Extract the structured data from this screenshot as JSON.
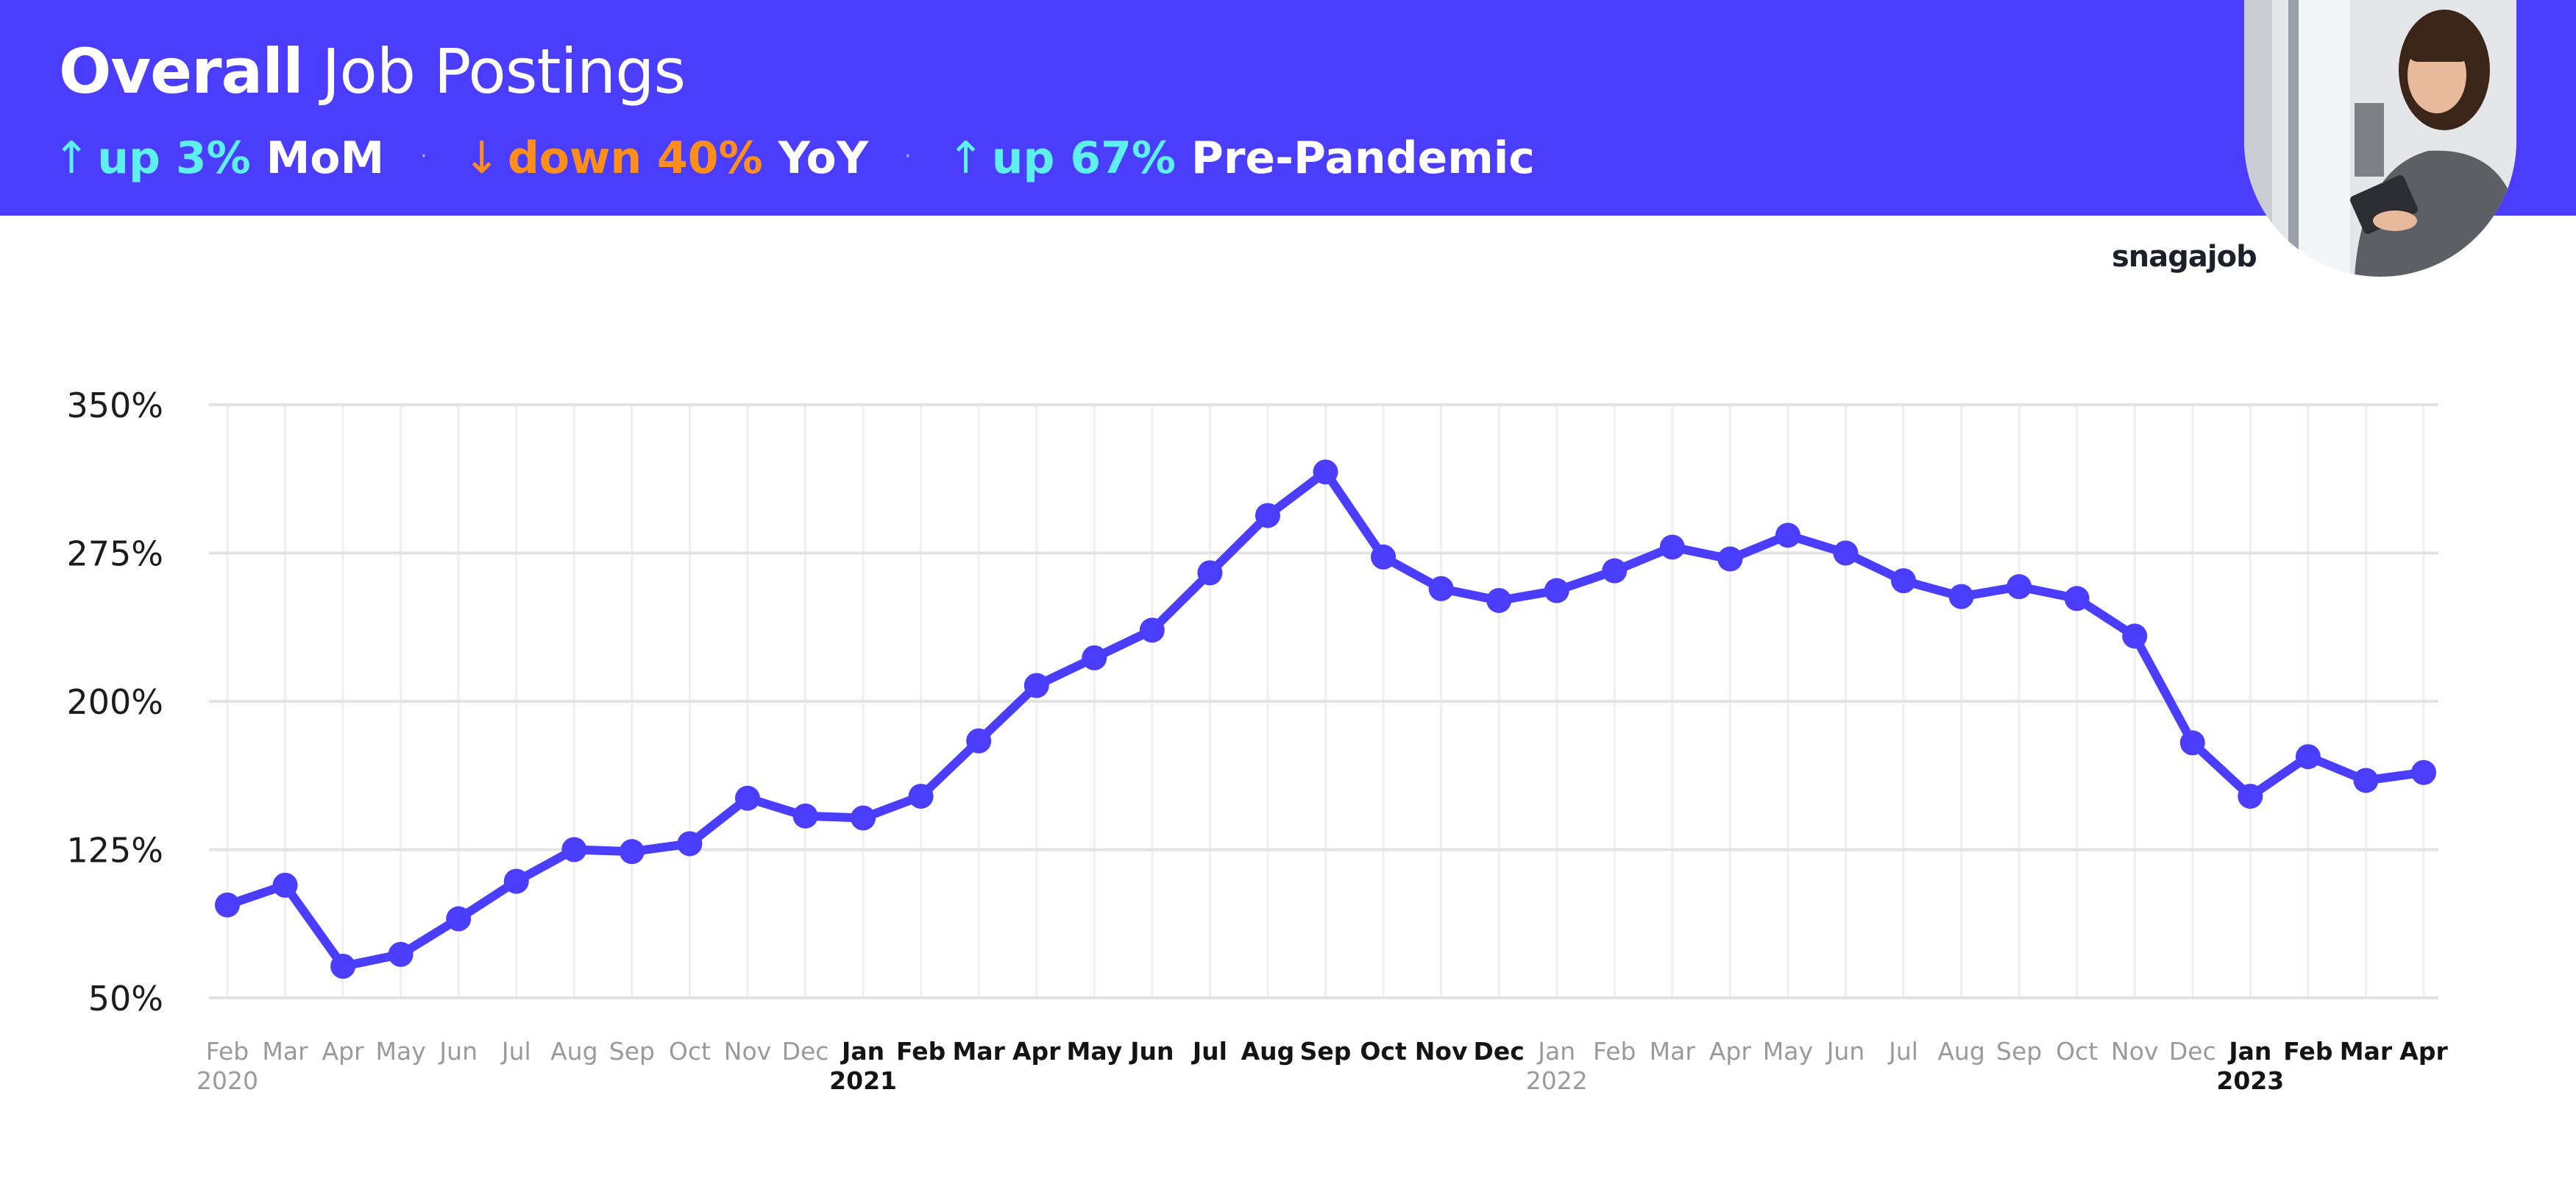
{
  "header": {
    "title_bold": "Overall",
    "title_light": "Job Postings",
    "stats": [
      {
        "arrow": "↑",
        "value": "up 3%",
        "label": "MoM",
        "color": "#5ef0ee"
      },
      {
        "arrow": "↓",
        "value": "down 40%",
        "label": "YoY",
        "color": "#ff8f1a"
      },
      {
        "arrow": "↑",
        "value": "up 67%",
        "label": "Pre-Pandemic",
        "color": "#5ef0ee"
      }
    ],
    "separator": "·"
  },
  "brand": "snagajob",
  "colors": {
    "header_bg": "#4a3dfb",
    "line": "#4a3dfb",
    "grid": "#e6e6e6"
  },
  "chart_data": {
    "type": "line",
    "title": "Overall Job Postings",
    "xlabel": "",
    "ylabel": "",
    "ylim": [
      50,
      350
    ],
    "yticks": [
      50,
      125,
      200,
      275,
      350
    ],
    "ytick_labels": [
      "50%",
      "125%",
      "200%",
      "275%",
      "350%"
    ],
    "categories": [
      "Feb",
      "Mar",
      "Apr",
      "May",
      "Jun",
      "Jul",
      "Aug",
      "Sep",
      "Oct",
      "Nov",
      "Dec",
      "Jan",
      "Feb",
      "Mar",
      "Apr",
      "May",
      "Jun",
      "Jul",
      "Aug",
      "Sep",
      "Oct",
      "Nov",
      "Dec",
      "Jan",
      "Feb",
      "Mar",
      "Apr",
      "May",
      "Jun",
      "Jul",
      "Aug",
      "Sep",
      "Oct",
      "Nov",
      "Dec",
      "Jan",
      "Feb",
      "Mar",
      "Apr"
    ],
    "category_bold": [
      false,
      false,
      false,
      false,
      false,
      false,
      false,
      false,
      false,
      false,
      false,
      true,
      true,
      true,
      true,
      true,
      true,
      true,
      true,
      true,
      true,
      true,
      true,
      false,
      false,
      false,
      false,
      false,
      false,
      false,
      false,
      false,
      false,
      false,
      false,
      true,
      true,
      true,
      true
    ],
    "years": [
      {
        "index": 0,
        "label": "2020",
        "bold": false
      },
      {
        "index": 11,
        "label": "2021",
        "bold": true
      },
      {
        "index": 23,
        "label": "2022",
        "bold": false
      },
      {
        "index": 35,
        "label": "2023",
        "bold": true
      }
    ],
    "series": [
      {
        "name": "Overall Job Postings",
        "values": [
          97,
          107,
          66,
          72,
          90,
          109,
          125,
          124,
          128,
          151,
          142,
          141,
          152,
          180,
          208,
          222,
          236,
          265,
          294,
          316,
          273,
          257,
          251,
          256,
          266,
          278,
          272,
          284,
          275,
          261,
          253,
          258,
          252,
          233,
          179,
          152,
          172,
          160,
          164
        ]
      }
    ],
    "grid": true,
    "legend": "none"
  }
}
